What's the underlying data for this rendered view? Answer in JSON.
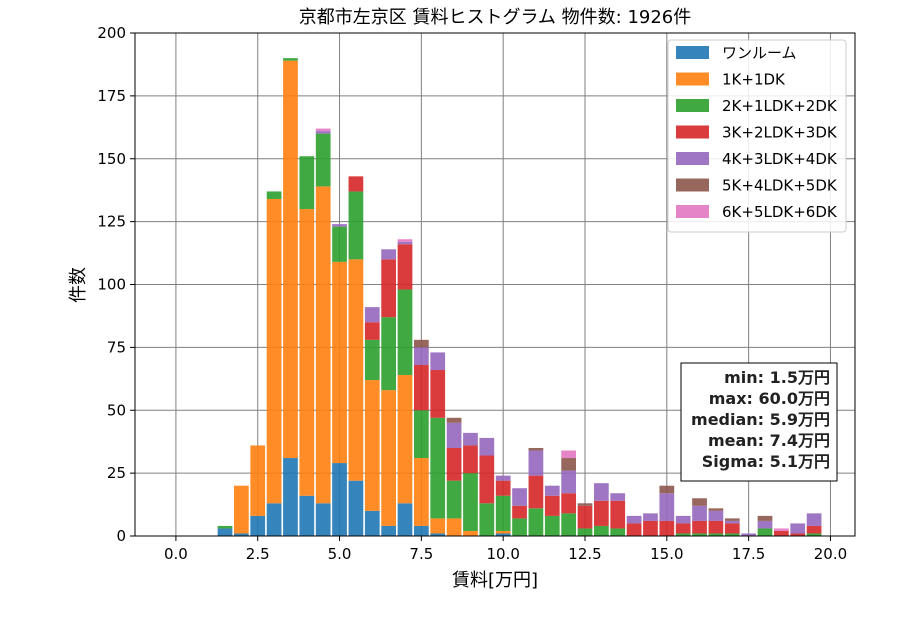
{
  "chart_data": {
    "type": "bar",
    "stacked": true,
    "title": "京都市左京区 賃料ヒストグラム  物件数: 1926件",
    "xlabel": "賃料[万円]",
    "ylabel": "件数",
    "xlim": [
      -1.25,
      20.75
    ],
    "ylim": [
      0,
      200
    ],
    "xticks": [
      0.0,
      2.5,
      5.0,
      7.5,
      10.0,
      12.5,
      15.0,
      17.5,
      20.0
    ],
    "xtick_labels": [
      "0.0",
      "2.5",
      "5.0",
      "7.5",
      "10.0",
      "12.5",
      "15.0",
      "17.5",
      "20.0"
    ],
    "yticks": [
      0,
      25,
      50,
      75,
      100,
      125,
      150,
      175,
      200
    ],
    "ytick_labels": [
      "0",
      "25",
      "50",
      "75",
      "100",
      "125",
      "150",
      "175",
      "200"
    ],
    "grid": true,
    "legend_position": "top-right",
    "bin_width": 0.5,
    "x": [
      1.5,
      2.0,
      2.5,
      3.0,
      3.5,
      4.0,
      4.5,
      5.0,
      5.5,
      6.0,
      6.5,
      7.0,
      7.5,
      8.0,
      8.5,
      9.0,
      9.5,
      10.0,
      10.5,
      11.0,
      11.5,
      12.0,
      12.5,
      13.0,
      13.5,
      14.0,
      14.5,
      15.0,
      15.5,
      16.0,
      16.5,
      17.0,
      17.5,
      18.0,
      18.5,
      19.0,
      19.5
    ],
    "series": [
      {
        "name": "ワンルーム",
        "color": "#1f77b4",
        "values": [
          3,
          1,
          8,
          13,
          31,
          16,
          13,
          29,
          22,
          10,
          4,
          13,
          4,
          1,
          0,
          0,
          0,
          1,
          0,
          0,
          0,
          0,
          0,
          0,
          0,
          0,
          0,
          0,
          0,
          0,
          0,
          0,
          0,
          0,
          0,
          0,
          0
        ]
      },
      {
        "name": "1K+1DK",
        "color": "#ff7f0e",
        "values": [
          0,
          19,
          28,
          121,
          158,
          114,
          126,
          80,
          88,
          52,
          54,
          51,
          27,
          6,
          7,
          2,
          0,
          1,
          0,
          0,
          0,
          0,
          0,
          0,
          0,
          0,
          0,
          0,
          0,
          0,
          0,
          0,
          0,
          0,
          0,
          0,
          0
        ]
      },
      {
        "name": "2K+1LDK+2DK",
        "color": "#2ca02c",
        "values": [
          1,
          0,
          0,
          3,
          1,
          21,
          21,
          14,
          27,
          16,
          29,
          34,
          19,
          40,
          15,
          23,
          13,
          14,
          7,
          11,
          8,
          9,
          3,
          4,
          3,
          0,
          0,
          0,
          1,
          1,
          1,
          1,
          0,
          3,
          0,
          0,
          1
        ]
      },
      {
        "name": "3K+2LDK+3DK",
        "color": "#d62728",
        "values": [
          0,
          0,
          0,
          0,
          0,
          0,
          0,
          0,
          6,
          7,
          23,
          18,
          18,
          19,
          13,
          11,
          19,
          6,
          5,
          13,
          8,
          8,
          9,
          10,
          11,
          5,
          6,
          6,
          4,
          5,
          5,
          4,
          0,
          0,
          2,
          1,
          3
        ]
      },
      {
        "name": "4K+3LDK+4DK",
        "color": "#9467bd",
        "values": [
          0,
          0,
          0,
          0,
          0,
          0,
          1,
          1,
          0,
          6,
          4,
          1,
          7,
          7,
          10,
          5,
          7,
          2,
          7,
          10,
          4,
          9,
          0,
          7,
          3,
          3,
          3,
          11,
          3,
          6,
          4,
          1,
          1,
          3,
          0,
          4,
          5
        ]
      },
      {
        "name": "5K+4LDK+5DK",
        "color": "#8c564b",
        "values": [
          0,
          0,
          0,
          0,
          0,
          0,
          0,
          0,
          0,
          0,
          0,
          0,
          3,
          0,
          2,
          0,
          0,
          0,
          0,
          1,
          0,
          5,
          1,
          0,
          0,
          0,
          0,
          3,
          0,
          3,
          1,
          1,
          0,
          2,
          0,
          0,
          0
        ]
      },
      {
        "name": "6K+5LDK+6DK",
        "color": "#e377c2",
        "values": [
          0,
          0,
          0,
          0,
          0,
          0,
          1,
          0,
          0,
          0,
          0,
          1,
          0,
          0,
          0,
          0,
          0,
          0,
          0,
          0,
          0,
          3,
          0,
          0,
          0,
          0,
          0,
          0,
          0,
          0,
          0,
          0,
          0,
          0,
          1,
          0,
          0
        ]
      }
    ],
    "stats": [
      "min: 1.5万円",
      "max: 60.0万円",
      "median: 5.9万円",
      "mean: 7.4万円",
      "Sigma: 5.1万円"
    ]
  }
}
